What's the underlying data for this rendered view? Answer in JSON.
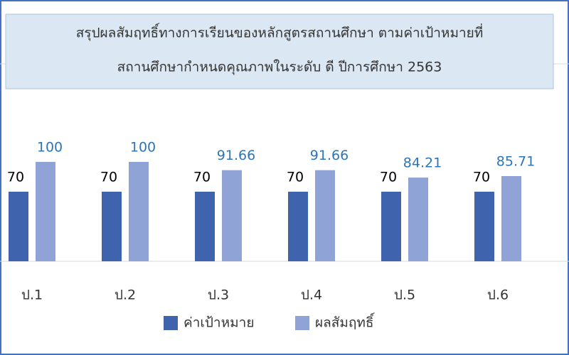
{
  "chart_data": {
    "type": "bar",
    "title": [
      "สรุปผลสัมฤทธิ์ทางการเรียนของหลักสูตรสถานศึกษา ตามค่าเป้าหมายที่",
      "สถานศึกษากำหนดคุณภาพในระดับ ดี ปีการศึกษา 2563"
    ],
    "categories": [
      "ป.1",
      "ป.2",
      "ป.3",
      "ป.4",
      "ป.5",
      "ป.6"
    ],
    "series": [
      {
        "name": "ค่าเป้าหมาย",
        "color": "#4063ad",
        "label_color": "#000000",
        "values": [
          70,
          70,
          70,
          70,
          70,
          70
        ]
      },
      {
        "name": "ผลสัมฤทธิ์",
        "color": "#8fa3d6",
        "label_color": "#2e75b6",
        "values": [
          100,
          100,
          91.66,
          91.66,
          84.21,
          85.71
        ]
      }
    ],
    "legend": "bottom"
  }
}
